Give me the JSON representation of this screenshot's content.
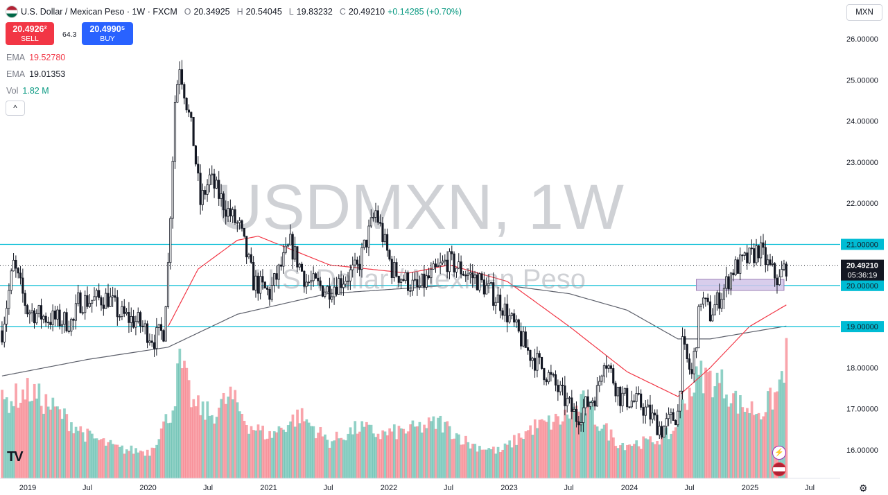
{
  "header": {
    "title": "U.S. Dollar / Mexican Peso · 1W · FXCM",
    "open_label": "O",
    "open": "20.34925",
    "high_label": "H",
    "high": "20.54045",
    "low_label": "L",
    "low": "19.83232",
    "close_label": "C",
    "close": "20.49210",
    "change": "+0.14285 (+0.70%)"
  },
  "trade": {
    "sell_price": "20.4926²",
    "sell_label": "SELL",
    "spread": "64.3",
    "buy_price": "20.4990⁵",
    "buy_label": "BUY"
  },
  "indicators": [
    {
      "name": "EMA",
      "value": "19.52780",
      "color": "#f23645"
    },
    {
      "name": "EMA",
      "value": "19.01353",
      "color": "#131722"
    },
    {
      "name": "Vol",
      "value": "1.82 M",
      "color": "#089981"
    }
  ],
  "collapse_glyph": "^",
  "currency_button": "MXN",
  "watermark": {
    "symbol": "USDMXN, 1W",
    "name": "U.S. Dollar / Mexican Peso"
  },
  "colors": {
    "up": "#089981",
    "down": "#f23645",
    "hline": "#00bcd4",
    "ema_fast": "#f23645",
    "ema_slow": "#5d606b",
    "zone": "#d1c4e9"
  },
  "logo_text": "TV",
  "icons": {
    "settings": "gear-icon",
    "alert": "lightning-icon",
    "news": "flag-icon"
  },
  "chart_data": {
    "type": "candlestick",
    "title": "U.S. Dollar / Mexican Peso · 1W · FXCM",
    "y_ticks": [
      "26.00000",
      "25.00000",
      "24.00000",
      "23.00000",
      "22.00000",
      "21.00000",
      "20.00000",
      "19.00000",
      "18.00000",
      "17.00000",
      "16.00000"
    ],
    "ylim": [
      15.7,
      26.3
    ],
    "x_ticks": [
      "2019",
      "Jul",
      "2020",
      "Jul",
      "2021",
      "Jul",
      "2022",
      "Jul",
      "2023",
      "Jul",
      "2024",
      "Jul",
      "2025",
      "Jul"
    ],
    "horizontal_levels": [
      {
        "value": 21.0,
        "label": "21.00000"
      },
      {
        "value": 20.0,
        "label": "20.00000"
      },
      {
        "value": 19.0,
        "label": "19.00000"
      }
    ],
    "last_price": {
      "value": 20.4921,
      "label": "20.49210",
      "countdown": "05:36:19"
    },
    "zone": {
      "from": 19.88,
      "to": 20.15
    },
    "price_path": [
      [
        "2018-10-15",
        18.9
      ],
      [
        "2018-11-19",
        20.5
      ],
      [
        "2018-12-31",
        19.4
      ],
      [
        "2019-03-04",
        19.2
      ],
      [
        "2019-05-20",
        19.1
      ],
      [
        "2019-06-03",
        19.6
      ],
      [
        "2019-09-02",
        19.7
      ],
      [
        "2019-10-07",
        19.3
      ],
      [
        "2019-12-02",
        19.1
      ],
      [
        "2020-01-20",
        18.7
      ],
      [
        "2020-02-17",
        18.9
      ],
      [
        "2020-03-02",
        20.5
      ],
      [
        "2020-03-23",
        24.5
      ],
      [
        "2020-04-06",
        25.4
      ],
      [
        "2020-05-18",
        23.5
      ],
      [
        "2020-06-08",
        22.0
      ],
      [
        "2020-07-06",
        22.6
      ],
      [
        "2020-08-31",
        21.8
      ],
      [
        "2020-10-05",
        21.4
      ],
      [
        "2020-11-16",
        20.1
      ],
      [
        "2021-01-04",
        19.8
      ],
      [
        "2021-03-08",
        21.0
      ],
      [
        "2021-04-26",
        20.1
      ],
      [
        "2021-06-28",
        19.9
      ],
      [
        "2021-09-27",
        20.4
      ],
      [
        "2021-11-22",
        21.8
      ],
      [
        "2022-01-10",
        20.4
      ],
      [
        "2022-03-28",
        19.9
      ],
      [
        "2022-06-27",
        20.6
      ],
      [
        "2022-10-03",
        20.1
      ],
      [
        "2022-12-05",
        19.6
      ],
      [
        "2023-02-27",
        18.4
      ],
      [
        "2023-05-01",
        17.8
      ],
      [
        "2023-07-24",
        16.8
      ],
      [
        "2023-09-25",
        17.4
      ],
      [
        "2023-10-16",
        18.3
      ],
      [
        "2023-12-04",
        17.3
      ],
      [
        "2024-02-05",
        17.1
      ],
      [
        "2024-04-08",
        16.5
      ],
      [
        "2024-05-27",
        16.9
      ],
      [
        "2024-06-10",
        18.5
      ],
      [
        "2024-07-08",
        17.8
      ],
      [
        "2024-08-05",
        19.7
      ],
      [
        "2024-09-02",
        19.3
      ],
      [
        "2024-10-07",
        19.8
      ],
      [
        "2024-11-11",
        20.4
      ],
      [
        "2025-01-06",
        20.7
      ],
      [
        "2025-01-27",
        20.9
      ],
      [
        "2025-03-03",
        20.4
      ],
      [
        "2025-03-31",
        20.1
      ],
      [
        "2025-04-07",
        20.3
      ],
      [
        "2025-04-21",
        20.49
      ]
    ],
    "ema_fast_path": [
      [
        "2020-03-02",
        19.0
      ],
      [
        "2020-06-01",
        20.4
      ],
      [
        "2020-09-28",
        21.1
      ],
      [
        "2020-11-30",
        21.2
      ],
      [
        "2021-07-05",
        20.5
      ],
      [
        "2022-02-28",
        20.3
      ],
      [
        "2022-07-04",
        20.5
      ],
      [
        "2022-12-26",
        20.1
      ],
      [
        "2023-07-03",
        19.0
      ],
      [
        "2023-12-25",
        17.9
      ],
      [
        "2024-05-27",
        17.3
      ],
      [
        "2024-09-02",
        18.0
      ],
      [
        "2024-12-30",
        19.0
      ],
      [
        "2025-04-21",
        19.5278
      ]
    ],
    "ema_slow_path": [
      [
        "2018-10-15",
        17.8
      ],
      [
        "2019-07-01",
        18.2
      ],
      [
        "2020-03-02",
        18.5
      ],
      [
        "2020-09-28",
        19.3
      ],
      [
        "2021-06-28",
        19.8
      ],
      [
        "2022-06-27",
        20.0
      ],
      [
        "2022-12-26",
        20.0
      ],
      [
        "2023-07-03",
        19.8
      ],
      [
        "2023-12-25",
        19.4
      ],
      [
        "2024-05-27",
        18.7
      ],
      [
        "2024-09-02",
        18.7
      ],
      [
        "2025-04-21",
        19.0135
      ]
    ],
    "volume_path": [
      [
        "2018-10-15",
        0.62
      ],
      [
        "2019-01-07",
        0.72
      ],
      [
        "2019-04-01",
        0.55
      ],
      [
        "2019-07-01",
        0.35
      ],
      [
        "2019-10-07",
        0.24
      ],
      [
        "2020-01-06",
        0.22
      ],
      [
        "2020-03-16",
        0.58
      ],
      [
        "2020-04-06",
        0.95
      ],
      [
        "2020-05-18",
        0.6
      ],
      [
        "2020-07-13",
        0.52
      ],
      [
        "2020-09-07",
        0.68
      ],
      [
        "2020-11-02",
        0.44
      ],
      [
        "2021-01-04",
        0.35
      ],
      [
        "2021-04-05",
        0.52
      ],
      [
        "2021-07-05",
        0.3
      ],
      [
        "2021-10-04",
        0.42
      ],
      [
        "2021-12-06",
        0.36
      ],
      [
        "2022-03-07",
        0.4
      ],
      [
        "2022-06-06",
        0.46
      ],
      [
        "2022-09-05",
        0.28
      ],
      [
        "2022-12-05",
        0.22
      ],
      [
        "2023-03-13",
        0.42
      ],
      [
        "2023-06-05",
        0.48
      ],
      [
        "2023-08-14",
        0.62
      ],
      [
        "2023-10-02",
        0.45
      ],
      [
        "2023-12-04",
        0.28
      ],
      [
        "2024-03-04",
        0.3
      ],
      [
        "2024-05-13",
        0.38
      ],
      [
        "2024-06-03",
        0.55
      ],
      [
        "2024-07-01",
        0.72
      ],
      [
        "2024-08-05",
        0.85
      ],
      [
        "2024-10-07",
        0.78
      ],
      [
        "2024-12-02",
        0.6
      ],
      [
        "2025-02-03",
        0.55
      ],
      [
        "2025-03-24",
        0.7
      ],
      [
        "2025-04-21",
        1.0
      ]
    ]
  }
}
